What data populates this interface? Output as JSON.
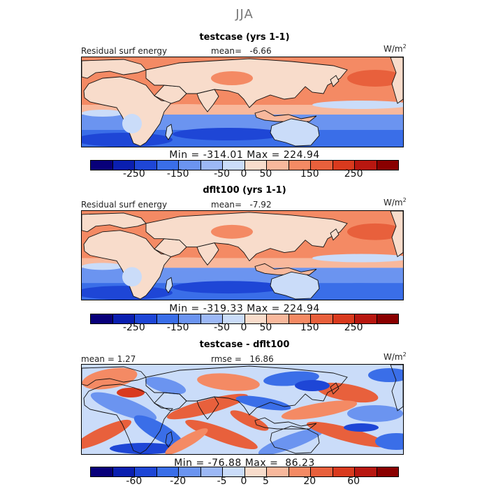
{
  "season": "JJA",
  "colors": [
    "#08007a",
    "#0a1fb0",
    "#1e46d6",
    "#3a6ee8",
    "#6b94f0",
    "#9cb8f6",
    "#cadcf9",
    "#f8dccb",
    "#f8b89c",
    "#f48a64",
    "#e8603c",
    "#d93a1e",
    "#b81710",
    "#8a0000"
  ],
  "chart_data": [
    {
      "type": "heatmap",
      "title": "testcase (yrs 1-1)",
      "left_label": "Residual surf energy",
      "center_label": "mean=   -6.66",
      "units": "W/m",
      "units_sup": "2",
      "mean": -6.66,
      "min": -314.01,
      "max": 224.94,
      "minmax_text": "Min = -314.01 Max = 224.94",
      "colorbar_ticks": [
        "-250",
        "-150",
        "-50",
        "0",
        "50",
        "150",
        "250"
      ],
      "colorbar_levels": [
        -350,
        -300,
        -250,
        -200,
        -150,
        -100,
        -50,
        -25,
        0,
        25,
        50,
        100,
        150,
        200,
        250,
        300,
        350
      ]
    },
    {
      "type": "heatmap",
      "title": "dflt100 (yrs 1-1)",
      "left_label": "Residual surf energy",
      "center_label": "mean=   -7.92",
      "units": "W/m",
      "units_sup": "2",
      "mean": -7.92,
      "min": -319.33,
      "max": 224.94,
      "minmax_text": "Min = -319.33 Max = 224.94",
      "colorbar_ticks": [
        "-250",
        "-150",
        "-50",
        "0",
        "50",
        "150",
        "250"
      ],
      "colorbar_levels": [
        -350,
        -300,
        -250,
        -200,
        -150,
        -100,
        -50,
        -25,
        0,
        25,
        50,
        100,
        150,
        200,
        250,
        300,
        350
      ]
    },
    {
      "type": "heatmap",
      "title": "testcase - dflt100",
      "left_label": "mean =   1.27",
      "center_label": "rmse =   16.86",
      "units": "W/m",
      "units_sup": "2",
      "mean": 1.27,
      "rmse": 16.86,
      "min": -76.88,
      "max": 86.23,
      "minmax_text": "Min = -76.88 Max =  86.23",
      "colorbar_ticks": [
        "-60",
        "-20",
        "-5",
        "0",
        "5",
        "20",
        "60"
      ],
      "colorbar_levels": [
        -80,
        -60,
        -40,
        -20,
        -10,
        -5,
        -2,
        0,
        2,
        5,
        10,
        20,
        40,
        60,
        80
      ]
    }
  ]
}
